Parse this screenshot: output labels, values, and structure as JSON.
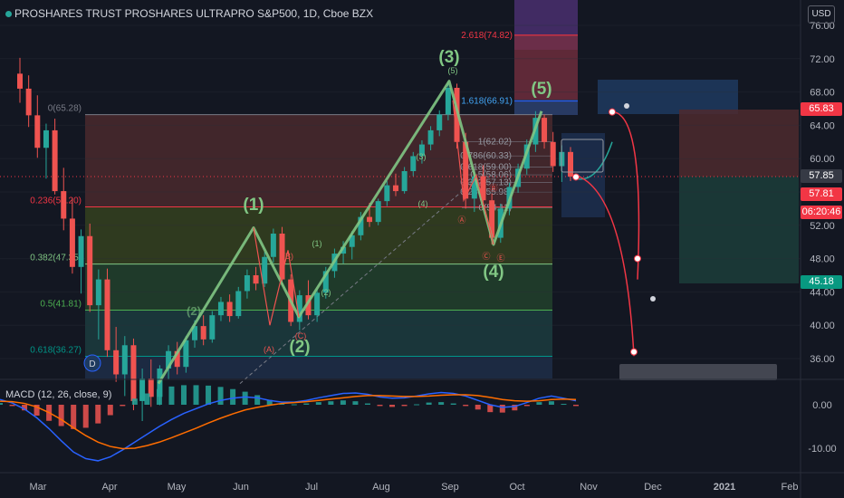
{
  "header": {
    "title": "PROSHARES TRUST PROSHARES ULTRAPRO S&P500, 1D, Cboe BZX",
    "currency": "USD"
  },
  "macd_label": "MACD (12, 26, close, 9)",
  "price_tags": [
    {
      "value": "65.83",
      "color": "#f23645"
    },
    {
      "value": "57.85",
      "color": "#363a45"
    },
    {
      "value": "57.81",
      "color": "#f23645"
    },
    {
      "value": "06:20:46",
      "color": "#f23645"
    },
    {
      "value": "45.18",
      "color": "#089981"
    }
  ],
  "chart_data": {
    "type": "candlestick",
    "y_axis": {
      "ticks": [
        "76.00",
        "72.00",
        "68.00",
        "64.00",
        "60.00",
        "56.00",
        "52.00",
        "48.00",
        "44.00",
        "40.00",
        "36.00"
      ]
    },
    "macd_axis": {
      "ticks": [
        "0.00",
        "-10.00"
      ]
    },
    "x_axis": {
      "ticks": [
        "Mar",
        "Apr",
        "May",
        "Jun",
        "Jul",
        "Aug",
        "Sep",
        "Oct",
        "Nov",
        "Dec",
        "2021",
        "Feb"
      ]
    },
    "fib_retracement": [
      {
        "label": "0(65.28)",
        "value": 65.28
      },
      {
        "label": "0.236(54.20)",
        "value": 54.2
      },
      {
        "label": "0.382(47.35)",
        "value": 47.35
      },
      {
        "label": "0.5(41.81)",
        "value": 41.81
      },
      {
        "label": "0.618(36.27)",
        "value": 36.27
      }
    ],
    "fib_extension": [
      {
        "label": "2.618(74.82)",
        "value": 74.82
      },
      {
        "label": "1.618(66.91)",
        "value": 66.91
      }
    ],
    "fib_small": [
      {
        "label": "1(62.02)",
        "value": 62.02
      },
      {
        "label": "0.786(60.33)",
        "value": 60.33
      },
      {
        "label": "0.618(59.00)",
        "value": 59.0
      },
      {
        "label": "0.5(58.06)",
        "value": 58.06
      },
      {
        "label": "0.382(57.13)",
        "value": 57.13
      },
      {
        "label": "0.236(55.98)",
        "value": 55.98
      },
      {
        "label": "0(54.11)",
        "value": 54.11
      }
    ],
    "wave_labels_major": [
      "(1)",
      "(2)",
      "(3)",
      "(4)",
      "(5)",
      "(2)"
    ],
    "wave_labels_minor": [
      "(5)",
      "(3)",
      "(4)",
      "(1)",
      "(2)",
      "(B)",
      "(A)",
      "(C)",
      "Ⓐ",
      "Ⓑ",
      "Ⓒ",
      "Ⓔ"
    ],
    "marker_label": "D",
    "wave_path": [
      {
        "x": "Apr 27",
        "y": 33.0
      },
      {
        "x": "Jun 8",
        "y": 51.7
      },
      {
        "x": "Jun 29",
        "y": 41.0
      },
      {
        "x": "Sep 2",
        "y": 69.3
      },
      {
        "x": "Sep 23",
        "y": 49.7
      },
      {
        "x": "Oct 12",
        "y": 65.7
      }
    ],
    "projection_price": [
      65.6,
      60.2,
      45.5,
      48.3,
      36.3
    ],
    "candles": [
      [
        70.2,
        72.1,
        66.7,
        68.4
      ],
      [
        68.4,
        70.0,
        63.8,
        65.2
      ],
      [
        65.2,
        67.6,
        60.1,
        61.3
      ],
      [
        61.3,
        64.2,
        57.6,
        63.4
      ],
      [
        63.4,
        64.8,
        55.7,
        56.1
      ],
      [
        56.1,
        58.9,
        51.4,
        52.8
      ],
      [
        52.8,
        55.3,
        46.2,
        47.0
      ],
      [
        47.0,
        51.5,
        43.8,
        50.7
      ],
      [
        50.7,
        52.2,
        41.6,
        42.4
      ],
      [
        42.4,
        46.7,
        38.3,
        45.5
      ],
      [
        45.5,
        46.8,
        36.2,
        37.0
      ],
      [
        37.0,
        39.8,
        33.2,
        34.1
      ],
      [
        34.1,
        38.7,
        31.5,
        37.6
      ],
      [
        37.6,
        38.4,
        29.8,
        30.9
      ],
      [
        30.9,
        34.8,
        28.5,
        33.6
      ],
      [
        33.6,
        35.9,
        30.2,
        31.4
      ],
      [
        31.4,
        35.2,
        30.4,
        34.8
      ],
      [
        34.8,
        37.6,
        33.5,
        36.9
      ],
      [
        36.9,
        38.0,
        34.1,
        35.0
      ],
      [
        35.0,
        38.7,
        34.3,
        38.2
      ],
      [
        38.2,
        40.6,
        37.3,
        39.9
      ],
      [
        39.9,
        41.2,
        37.6,
        38.3
      ],
      [
        38.3,
        41.7,
        37.9,
        41.2
      ],
      [
        41.2,
        43.4,
        40.5,
        42.8
      ],
      [
        42.8,
        43.7,
        40.4,
        41.1
      ],
      [
        41.1,
        44.6,
        40.8,
        44.1
      ],
      [
        44.1,
        46.7,
        43.2,
        46.0
      ],
      [
        46.0,
        47.0,
        44.2,
        45.0
      ],
      [
        45.0,
        48.8,
        44.6,
        48.2
      ],
      [
        48.2,
        51.6,
        47.5,
        51.0
      ],
      [
        51.0,
        51.8,
        44.8,
        45.5
      ],
      [
        45.5,
        46.1,
        39.9,
        40.4
      ],
      [
        40.4,
        44.2,
        39.4,
        43.6
      ],
      [
        43.6,
        45.4,
        40.7,
        41.2
      ],
      [
        41.2,
        44.3,
        40.4,
        43.9
      ],
      [
        43.9,
        47.0,
        43.2,
        46.5
      ],
      [
        46.5,
        49.2,
        45.7,
        48.6
      ],
      [
        48.6,
        50.1,
        47.4,
        49.4
      ],
      [
        49.4,
        51.3,
        47.9,
        50.8
      ],
      [
        50.8,
        53.6,
        50.2,
        53.0
      ],
      [
        53.0,
        54.7,
        51.8,
        52.4
      ],
      [
        52.4,
        55.2,
        52.0,
        54.9
      ],
      [
        54.9,
        57.3,
        54.3,
        56.8
      ],
      [
        56.8,
        58.2,
        55.5,
        56.1
      ],
      [
        56.1,
        59.0,
        55.8,
        58.5
      ],
      [
        58.5,
        60.8,
        57.9,
        60.3
      ],
      [
        60.3,
        62.2,
        59.4,
        61.7
      ],
      [
        61.7,
        63.9,
        61.0,
        63.4
      ],
      [
        63.4,
        65.8,
        62.7,
        65.3
      ],
      [
        65.3,
        69.3,
        64.6,
        68.5
      ],
      [
        68.5,
        69.0,
        61.2,
        62.0
      ],
      [
        62.0,
        63.1,
        54.0,
        55.2
      ],
      [
        55.2,
        58.6,
        53.6,
        57.9
      ],
      [
        57.9,
        59.2,
        54.4,
        55.0
      ],
      [
        55.0,
        55.8,
        49.7,
        50.5
      ],
      [
        50.5,
        54.6,
        49.9,
        54.0
      ],
      [
        54.0,
        57.1,
        53.2,
        56.6
      ],
      [
        56.6,
        59.4,
        55.9,
        58.8
      ],
      [
        58.8,
        62.3,
        58.1,
        61.7
      ],
      [
        61.7,
        65.7,
        60.8,
        64.9
      ],
      [
        64.9,
        65.3,
        61.2,
        62.0
      ],
      [
        62.0,
        63.2,
        58.4,
        59.1
      ],
      [
        59.1,
        61.6,
        57.2,
        60.8
      ],
      [
        60.8,
        61.4,
        57.3,
        57.85
      ]
    ],
    "macd_line": [
      1.2,
      0.4,
      -1.0,
      -3.0,
      -5.5,
      -8.3,
      -10.9,
      -12.4,
      -12.9,
      -12.0,
      -10.4,
      -8.6,
      -6.8,
      -5.0,
      -3.4,
      -2.0,
      -0.9,
      0.2,
      1.0,
      1.5,
      1.8,
      1.6,
      1.0,
      0.6,
      0.6,
      1.0,
      1.6,
      2.1,
      2.6,
      2.7,
      2.4,
      1.8,
      1.5,
      1.6,
      2.0,
      2.5,
      2.8,
      2.6,
      2.0,
      1.0,
      0.0,
      -0.6,
      -0.4,
      0.5,
      1.5,
      2.0,
      1.5,
      0.9
    ],
    "macd_signal": [
      0.8,
      0.7,
      0.3,
      -0.5,
      -1.8,
      -3.4,
      -5.3,
      -7.1,
      -8.6,
      -9.6,
      -10.1,
      -10.0,
      -9.4,
      -8.6,
      -7.6,
      -6.5,
      -5.4,
      -4.2,
      -3.1,
      -2.1,
      -1.2,
      -0.6,
      -0.1,
      0.3,
      0.5,
      0.7,
      1.0,
      1.3,
      1.6,
      1.9,
      2.1,
      2.1,
      2.0,
      1.9,
      1.9,
      2.0,
      2.2,
      2.3,
      2.3,
      2.1,
      1.7,
      1.2,
      0.9,
      0.8,
      0.9,
      1.2,
      1.3,
      1.2
    ]
  }
}
